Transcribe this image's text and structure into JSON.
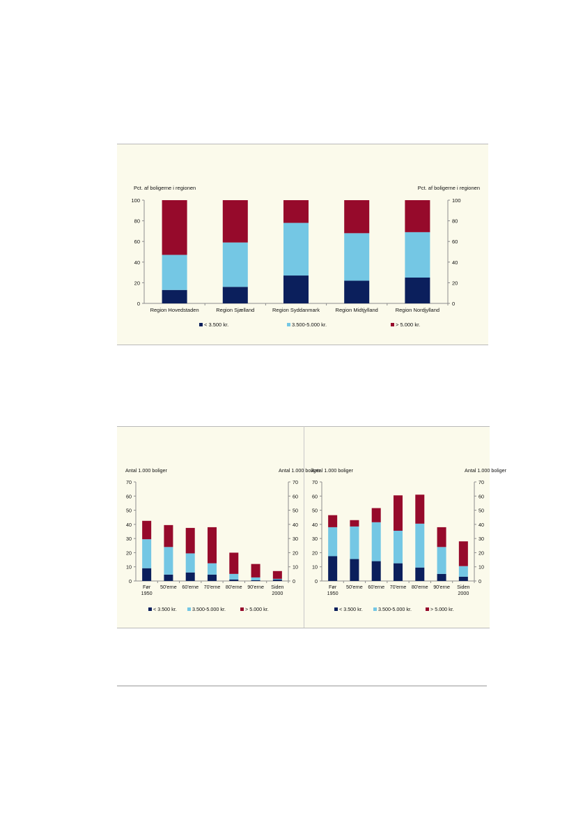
{
  "colors": {
    "low": "#0b1f5c",
    "mid": "#74c7e4",
    "high": "#960a2b"
  },
  "chart_data": [
    {
      "type": "bar",
      "stacked": true,
      "ylabel_left": "Pct. af boligerne i regionen",
      "ylabel_right": "Pct. af boligerne i regionen",
      "ylim": [
        0,
        100
      ],
      "yticks": [
        "0",
        "20",
        "40",
        "60",
        "80",
        "100"
      ],
      "categories": [
        "Region Hovedstaden",
        "Region Sjælland",
        "Region Syddanmark",
        "Region Midtjylland",
        "Region Nordjylland"
      ],
      "series": [
        {
          "name": "< 3.500 kr.",
          "values": [
            13,
            16,
            27,
            22,
            25
          ]
        },
        {
          "name": "3.500-5.000 kr.",
          "values": [
            34,
            43,
            51,
            46,
            44
          ]
        },
        {
          "name": "> 5.000 kr.",
          "values": [
            53,
            41,
            22,
            32,
            31
          ]
        }
      ],
      "legend_position": "bottom",
      "grid": false
    },
    {
      "type": "bar",
      "stacked": true,
      "ylabel_left": "Antal 1.000 boliger",
      "ylabel_right": "Antal 1.000 boliger",
      "ylim": [
        0,
        70
      ],
      "yticks": [
        "0",
        "10",
        "20",
        "30",
        "40",
        "50",
        "60",
        "70"
      ],
      "categories": [
        [
          "Før",
          "1950"
        ],
        [
          "50'erne"
        ],
        [
          "60'erne"
        ],
        [
          "70'erne"
        ],
        [
          "80'erne"
        ],
        [
          "90'erne"
        ],
        [
          "Siden",
          "2000"
        ]
      ],
      "series": [
        {
          "name": "< 3.500 kr.",
          "values": [
            9,
            4.5,
            6,
            4.5,
            1,
            0.5,
            1
          ]
        },
        {
          "name": "3.500-5.000 kr.",
          "values": [
            20.5,
            19.5,
            13.5,
            8,
            4,
            2,
            0.5
          ]
        },
        {
          "name": "> 5.000 kr.",
          "values": [
            13,
            15.5,
            18,
            25.5,
            15,
            9.5,
            5.5
          ]
        }
      ],
      "legend_position": "bottom",
      "grid": false
    },
    {
      "type": "bar",
      "stacked": true,
      "ylabel_left": "Antal 1.000 boliger",
      "ylabel_right": "Antal 1.000 boliger",
      "ylim": [
        0,
        70
      ],
      "yticks": [
        "0",
        "10",
        "20",
        "30",
        "40",
        "50",
        "60",
        "70"
      ],
      "categories": [
        [
          "Før",
          "1950"
        ],
        [
          "50'erne"
        ],
        [
          "60'erne"
        ],
        [
          "70'erne"
        ],
        [
          "80'erne"
        ],
        [
          "90'erne"
        ],
        [
          "Siden",
          "2000"
        ]
      ],
      "series": [
        {
          "name": "< 3.500 kr.",
          "values": [
            17.5,
            15.5,
            14,
            12.5,
            9.5,
            5,
            3
          ]
        },
        {
          "name": "3.500-5.000 kr.",
          "values": [
            20.5,
            23,
            27.5,
            23,
            31,
            19,
            7.5
          ]
        },
        {
          "name": "> 5.000 kr.",
          "values": [
            8.5,
            4.5,
            10,
            25,
            20.5,
            14,
            17.5
          ]
        }
      ],
      "legend_position": "bottom",
      "grid": false
    }
  ]
}
